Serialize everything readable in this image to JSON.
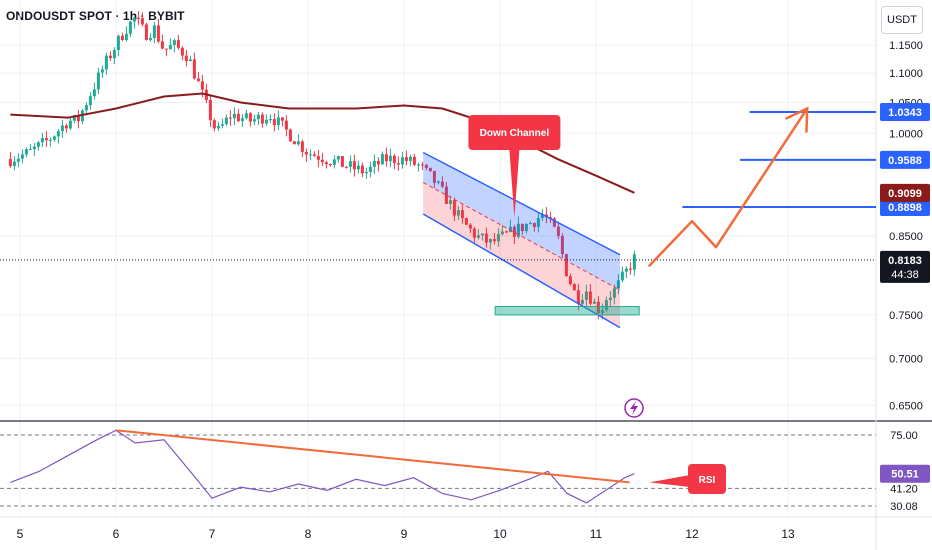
{
  "header": {
    "title": "ONDOUSDT SPOT · 1h · BYBIT",
    "currency": "USDT",
    "colors": {
      "up": "#22ab94",
      "down": "#f23645",
      "ma": "#8b1a1a",
      "accent": "#2962ff",
      "orange": "#f26b38",
      "note": "#f23645"
    }
  },
  "chart_data": [
    {
      "type": "candlestick",
      "y_scale": "log",
      "ylim": [
        0.635,
        1.235
      ],
      "y_ticks": [
        "1.1500",
        "1.1000",
        "1.0500",
        "1.0000",
        "0.8500",
        "0.7500",
        "0.7000",
        "0.6500"
      ],
      "x_ticks": [
        "5",
        "6",
        "7",
        "8",
        "9",
        "10",
        "11",
        "12",
        "13"
      ],
      "x_days": [
        5,
        6,
        7,
        8,
        9,
        10,
        11,
        12,
        13
      ],
      "price_path": [
        [
          4.9,
          0.96
        ],
        [
          5.1,
          0.97
        ],
        [
          5.3,
          0.99
        ],
        [
          5.5,
          1.02
        ],
        [
          5.6,
          1.02
        ],
        [
          5.75,
          1.07
        ],
        [
          5.9,
          1.12
        ],
        [
          6.0,
          1.15
        ],
        [
          6.1,
          1.18
        ],
        [
          6.2,
          1.2
        ],
        [
          6.3,
          1.17
        ],
        [
          6.4,
          1.18
        ],
        [
          6.5,
          1.14
        ],
        [
          6.6,
          1.15
        ],
        [
          6.75,
          1.13
        ],
        [
          6.95,
          1.04
        ],
        [
          7.05,
          1.0
        ],
        [
          7.2,
          1.03
        ],
        [
          7.4,
          1.02
        ],
        [
          7.6,
          1.03
        ],
        [
          7.8,
          1.0
        ],
        [
          8.0,
          0.97
        ],
        [
          8.2,
          0.96
        ],
        [
          8.4,
          0.95
        ],
        [
          8.6,
          0.94
        ],
        [
          8.8,
          0.96
        ],
        [
          9.0,
          0.96
        ],
        [
          9.15,
          0.95
        ],
        [
          9.3,
          0.93
        ],
        [
          9.45,
          0.9
        ],
        [
          9.6,
          0.87
        ],
        [
          9.75,
          0.85
        ],
        [
          9.9,
          0.84
        ],
        [
          10.05,
          0.85
        ],
        [
          10.2,
          0.86
        ],
        [
          10.35,
          0.87
        ],
        [
          10.45,
          0.88
        ],
        [
          10.6,
          0.85
        ],
        [
          10.7,
          0.8
        ],
        [
          10.8,
          0.77
        ],
        [
          10.9,
          0.78
        ],
        [
          11.0,
          0.76
        ],
        [
          11.05,
          0.755
        ],
        [
          11.1,
          0.77
        ],
        [
          11.2,
          0.78
        ],
        [
          11.3,
          0.8
        ],
        [
          11.4,
          0.82
        ]
      ],
      "moving_average": [
        [
          4.9,
          1.03
        ],
        [
          5.5,
          1.025
        ],
        [
          6.0,
          1.04
        ],
        [
          6.5,
          1.06
        ],
        [
          6.9,
          1.065
        ],
        [
          7.3,
          1.05
        ],
        [
          7.8,
          1.04
        ],
        [
          8.5,
          1.04
        ],
        [
          9.0,
          1.045
        ],
        [
          9.4,
          1.04
        ],
        [
          9.8,
          1.02
        ],
        [
          10.2,
          0.99
        ],
        [
          10.6,
          0.96
        ],
        [
          11.0,
          0.935
        ],
        [
          11.4,
          0.91
        ]
      ],
      "channel": {
        "upper": [
          [
            9.2,
            0.97
          ],
          [
            11.25,
            0.825
          ]
        ],
        "lower": [
          [
            9.2,
            0.88
          ],
          [
            11.25,
            0.735
          ]
        ]
      },
      "support_zone": {
        "x": [
          9.95,
          11.45
        ],
        "y": [
          0.75,
          0.76
        ]
      },
      "levels": [
        {
          "price": 1.0343,
          "label": "1.0343",
          "x_start": 12.6
        },
        {
          "price": 0.9588,
          "label": "0.9588",
          "x_start": 12.5
        },
        {
          "price": 0.8898,
          "label": "0.8898",
          "x_start": 11.9
        }
      ],
      "ma_label": "0.9099",
      "last_price": {
        "label": "0.8183",
        "countdown": "44:38",
        "value": 0.8183
      },
      "projection": [
        [
          11.55,
          0.81
        ],
        [
          12.0,
          0.87
        ],
        [
          12.25,
          0.835
        ],
        [
          13.2,
          1.04
        ]
      ],
      "annotations": [
        {
          "text": "Down Channel",
          "point": [
            10.15,
            0.875
          ]
        }
      ]
    },
    {
      "type": "line",
      "name": "RSI",
      "ylim": [
        25,
        82
      ],
      "y_ticks": [
        "75.00",
        "50.51",
        "41.20",
        "30.08"
      ],
      "bands": [
        75,
        41.2,
        30.08
      ],
      "current": 50.51,
      "rsi_path": [
        [
          4.9,
          45
        ],
        [
          5.2,
          52
        ],
        [
          5.5,
          62
        ],
        [
          5.8,
          72
        ],
        [
          6.0,
          78
        ],
        [
          6.2,
          70
        ],
        [
          6.5,
          72
        ],
        [
          6.8,
          50
        ],
        [
          7.0,
          35
        ],
        [
          7.3,
          42
        ],
        [
          7.6,
          39
        ],
        [
          7.9,
          44
        ],
        [
          8.2,
          40
        ],
        [
          8.5,
          47
        ],
        [
          8.8,
          43
        ],
        [
          9.1,
          48
        ],
        [
          9.4,
          38
        ],
        [
          9.7,
          34
        ],
        [
          10.0,
          40
        ],
        [
          10.3,
          47
        ],
        [
          10.5,
          52
        ],
        [
          10.7,
          38
        ],
        [
          10.9,
          32
        ],
        [
          11.1,
          40
        ],
        [
          11.3,
          48
        ],
        [
          11.4,
          50.5
        ]
      ],
      "trendline": [
        [
          6.0,
          78
        ],
        [
          11.35,
          45
        ]
      ],
      "annotations": [
        {
          "text": "RSI",
          "point": [
            11.35,
            45
          ]
        }
      ]
    }
  ]
}
